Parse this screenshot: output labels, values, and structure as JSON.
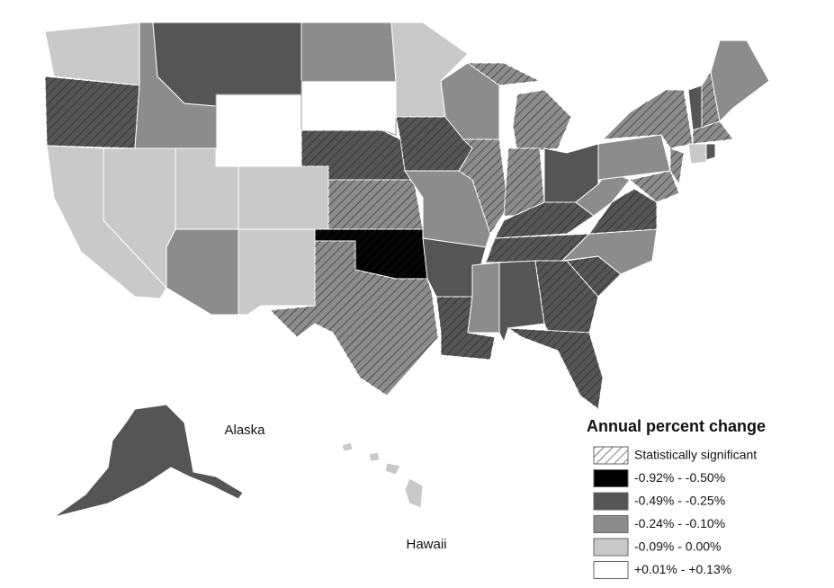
{
  "legend": {
    "title": "Annual percent change",
    "items": [
      "Statistically significant",
      "-0.92% - -0.50%",
      "-0.49% - -0.25%",
      "-0.24% - -0.10%",
      "-0.09% - 0.00%",
      "+0.01% - +0.13%"
    ]
  },
  "labels": {
    "alaska": "Alaska",
    "hawaii": "Hawaii"
  }
}
